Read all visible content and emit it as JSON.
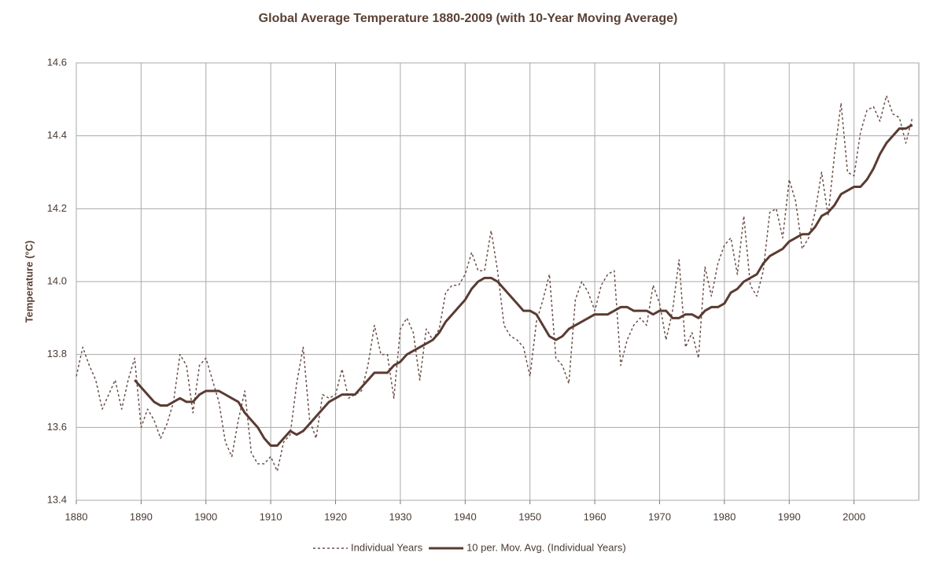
{
  "chart_data": {
    "type": "line",
    "title": "Global Average Temperature 1880-2009 (with 10-Year Moving Average)",
    "y_label": "Temperature (°C)",
    "x": [
      1880,
      1881,
      1882,
      1883,
      1884,
      1885,
      1886,
      1887,
      1888,
      1889,
      1890,
      1891,
      1892,
      1893,
      1894,
      1895,
      1896,
      1897,
      1898,
      1899,
      1900,
      1901,
      1902,
      1903,
      1904,
      1905,
      1906,
      1907,
      1908,
      1909,
      1910,
      1911,
      1912,
      1913,
      1914,
      1915,
      1916,
      1917,
      1918,
      1919,
      1920,
      1921,
      1922,
      1923,
      1924,
      1925,
      1926,
      1927,
      1928,
      1929,
      1930,
      1931,
      1932,
      1933,
      1934,
      1935,
      1936,
      1937,
      1938,
      1939,
      1940,
      1941,
      1942,
      1943,
      1944,
      1945,
      1946,
      1947,
      1948,
      1949,
      1950,
      1951,
      1952,
      1953,
      1954,
      1955,
      1956,
      1957,
      1958,
      1959,
      1960,
      1961,
      1962,
      1963,
      1964,
      1965,
      1966,
      1967,
      1968,
      1969,
      1970,
      1971,
      1972,
      1973,
      1974,
      1975,
      1976,
      1977,
      1978,
      1979,
      1980,
      1981,
      1982,
      1983,
      1984,
      1985,
      1986,
      1987,
      1988,
      1989,
      1990,
      1991,
      1992,
      1993,
      1994,
      1995,
      1996,
      1997,
      1998,
      1999,
      2000,
      2001,
      2002,
      2003,
      2004,
      2005,
      2006,
      2007,
      2008,
      2009
    ],
    "series": [
      {
        "name": "Individual Years",
        "color": "#6b5048",
        "dash": true,
        "values": [
          13.74,
          13.82,
          13.77,
          13.73,
          13.65,
          13.69,
          13.73,
          13.65,
          13.73,
          13.79,
          13.6,
          13.65,
          13.62,
          13.57,
          13.61,
          13.67,
          13.8,
          13.77,
          13.64,
          13.77,
          13.79,
          13.73,
          13.67,
          13.56,
          13.52,
          13.62,
          13.7,
          13.53,
          13.5,
          13.5,
          13.52,
          13.48,
          13.56,
          13.58,
          13.72,
          13.82,
          13.62,
          13.57,
          13.69,
          13.68,
          13.69,
          13.76,
          13.68,
          13.69,
          13.7,
          13.77,
          13.88,
          13.8,
          13.8,
          13.68,
          13.87,
          13.9,
          13.86,
          13.73,
          13.87,
          13.84,
          13.87,
          13.97,
          13.99,
          13.99,
          14.02,
          14.08,
          14.03,
          14.03,
          14.14,
          14.03,
          13.88,
          13.85,
          13.84,
          13.82,
          13.74,
          13.89,
          13.95,
          14.02,
          13.79,
          13.77,
          13.72,
          13.95,
          14.0,
          13.97,
          13.92,
          13.99,
          14.02,
          14.03,
          13.77,
          13.84,
          13.88,
          13.9,
          13.88,
          13.99,
          13.94,
          13.84,
          13.92,
          14.06,
          13.82,
          13.86,
          13.79,
          14.04,
          13.96,
          14.05,
          14.1,
          14.12,
          14.02,
          14.18,
          13.99,
          13.96,
          14.03,
          14.19,
          14.2,
          14.12,
          14.28,
          14.22,
          14.09,
          14.12,
          14.19,
          14.3,
          14.18,
          14.35,
          14.49,
          14.3,
          14.29,
          14.41,
          14.47,
          14.48,
          14.44,
          14.51,
          14.46,
          14.45,
          14.38,
          14.45
        ]
      },
      {
        "name": "10 per. Mov. Avg. (Individual Years)",
        "color": "#5a3b32",
        "dash": false,
        "values": [
          null,
          null,
          null,
          null,
          null,
          null,
          null,
          null,
          null,
          13.73,
          13.71,
          13.69,
          13.67,
          13.66,
          13.66,
          13.67,
          13.68,
          13.67,
          13.67,
          13.69,
          13.7,
          13.7,
          13.7,
          13.69,
          13.68,
          13.67,
          13.64,
          13.62,
          13.6,
          13.57,
          13.55,
          13.55,
          13.57,
          13.59,
          13.58,
          13.59,
          13.61,
          13.63,
          13.65,
          13.67,
          13.68,
          13.69,
          13.69,
          13.69,
          13.71,
          13.73,
          13.75,
          13.75,
          13.75,
          13.77,
          13.78,
          13.8,
          13.81,
          13.82,
          13.83,
          13.84,
          13.86,
          13.89,
          13.91,
          13.93,
          13.95,
          13.98,
          14.0,
          14.01,
          14.01,
          14.0,
          13.98,
          13.96,
          13.94,
          13.92,
          13.92,
          13.91,
          13.88,
          13.85,
          13.84,
          13.85,
          13.87,
          13.88,
          13.89,
          13.9,
          13.91,
          13.91,
          13.91,
          13.92,
          13.93,
          13.93,
          13.92,
          13.92,
          13.92,
          13.91,
          13.92,
          13.92,
          13.9,
          13.9,
          13.91,
          13.91,
          13.9,
          13.92,
          13.93,
          13.93,
          13.94,
          13.97,
          13.98,
          14.0,
          14.01,
          14.02,
          14.05,
          14.07,
          14.08,
          14.09,
          14.11,
          14.12,
          14.13,
          14.13,
          14.15,
          14.18,
          14.19,
          14.21,
          14.24,
          14.25,
          14.26,
          14.26,
          14.28,
          14.31,
          14.35,
          14.38,
          14.4,
          14.42,
          14.42,
          14.43
        ]
      }
    ],
    "xlim": [
      1880,
      2010
    ],
    "xticks": [
      1880,
      1890,
      1900,
      1910,
      1920,
      1930,
      1940,
      1950,
      1960,
      1970,
      1980,
      1990,
      2000
    ],
    "ylim": [
      13.4,
      14.6
    ],
    "yticks": [
      {
        "value": 13.4,
        "label": "13.4"
      },
      {
        "value": 13.6,
        "label": "13.6"
      },
      {
        "value": 13.8,
        "label": "13.8"
      },
      {
        "value": 14.0,
        "label": "14.0"
      },
      {
        "value": 14.2,
        "label": "14.2"
      },
      {
        "value": 14.4,
        "label": "14.4"
      },
      {
        "value": 14.6,
        "label": "14.6"
      }
    ],
    "grid": true,
    "legend": "bottom"
  }
}
